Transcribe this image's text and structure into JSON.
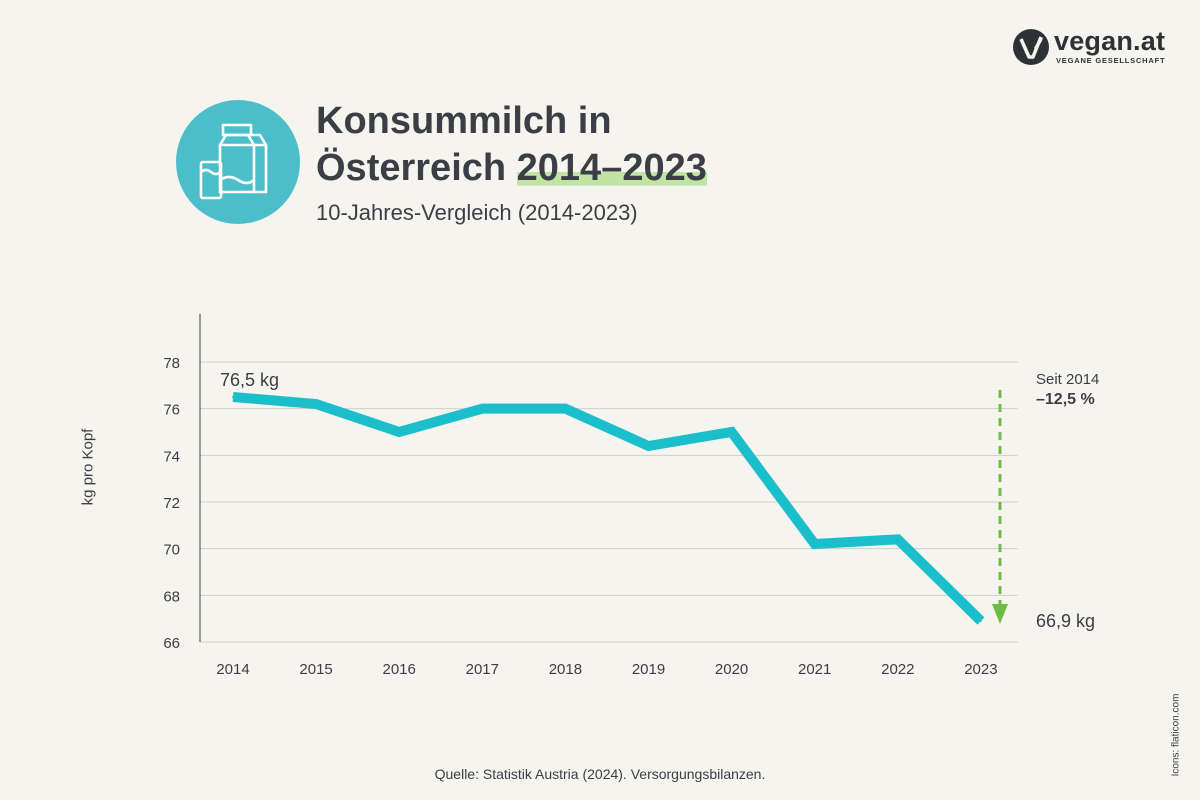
{
  "brand": {
    "name": "vegan.at",
    "tagline": "VEGANE GESELLSCHAFT"
  },
  "header": {
    "title_line1": "Konsummilch in",
    "title_line2_prefix": "Österreich ",
    "title_line2_highlight": "2014–2023",
    "subtitle": "10-Jahres-Vergleich (2014-2023)",
    "icon": "milk-carton-glass-icon"
  },
  "colors": {
    "line": "#1bbfcb",
    "icon_circle": "#4cbec9",
    "highlight": "#bfe4a4",
    "arrow": "#6dbd45",
    "text": "#3b3f45",
    "grid": "#cfcfcf"
  },
  "chart_data": {
    "type": "line",
    "x": [
      "2014",
      "2015",
      "2016",
      "2017",
      "2018",
      "2019",
      "2020",
      "2021",
      "2022",
      "2023"
    ],
    "series": [
      {
        "values": [
          76.5,
          76.2,
          75.0,
          76.0,
          76.0,
          74.4,
          75.0,
          70.2,
          70.4,
          66.9
        ]
      }
    ],
    "ylabel": "kg pro Kopf",
    "xlabel": "",
    "ylim": [
      66,
      78
    ],
    "yticks": [
      66,
      68,
      70,
      72,
      74,
      76,
      78
    ],
    "grid": true,
    "annotations": {
      "start_label": "76,5 kg",
      "end_label": "66,9 kg",
      "change_label": "Seit 2014",
      "change_value": "–12,5 %"
    }
  },
  "footer": {
    "source": "Quelle: Statistik Austria (2024). Versorgungsbilanzen.",
    "credit": "Icons: flaticon.com"
  }
}
